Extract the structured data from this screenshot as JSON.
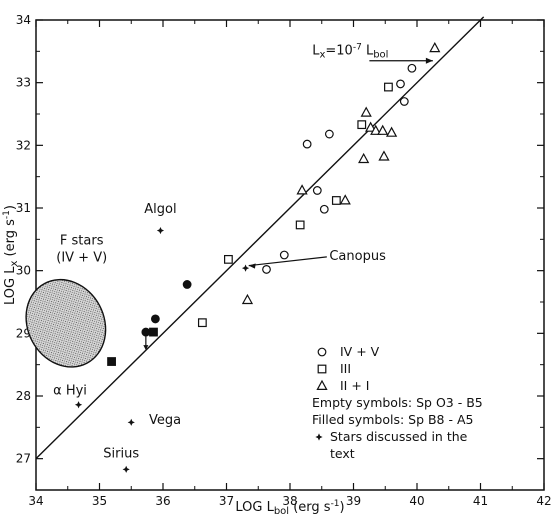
{
  "chart_data": {
    "type": "scatter",
    "xlabel": "LOG L_bol (erg s⁻¹)",
    "ylabel": "LOG L_x (erg s⁻¹)",
    "xlim": [
      34,
      42
    ],
    "ylim": [
      26.5,
      34
    ],
    "x_ticks": [
      34,
      35,
      36,
      37,
      38,
      39,
      40,
      41,
      42
    ],
    "y_ticks": [
      27,
      28,
      29,
      30,
      31,
      32,
      33,
      34
    ],
    "grid": false,
    "legend_position": "lower-right",
    "relation": {
      "label": "Lx=10⁻⁷ Lbol",
      "slope": 1,
      "intercept": -7
    },
    "series": [
      {
        "name": "IV + V",
        "marker": "circle",
        "points": [
          [
            38.27,
            32.02
          ],
          [
            38.62,
            32.18
          ],
          [
            39.74,
            32.98
          ],
          [
            39.92,
            33.23
          ],
          [
            39.8,
            32.7
          ],
          [
            38.43,
            31.28
          ],
          [
            38.54,
            30.98
          ],
          [
            37.91,
            30.25
          ],
          [
            37.63,
            30.02
          ]
        ]
      },
      {
        "name": "III",
        "marker": "square",
        "points": [
          [
            39.55,
            32.93
          ],
          [
            39.13,
            32.33
          ],
          [
            38.73,
            31.12
          ],
          [
            38.16,
            30.73
          ],
          [
            37.03,
            30.18
          ],
          [
            36.62,
            29.17
          ]
        ]
      },
      {
        "name": "II + I",
        "marker": "triangle",
        "points": [
          [
            40.28,
            33.55
          ],
          [
            39.2,
            32.52
          ],
          [
            39.27,
            32.28
          ],
          [
            39.35,
            32.23
          ],
          [
            39.46,
            32.23
          ],
          [
            39.6,
            32.2
          ],
          [
            39.16,
            31.78
          ],
          [
            39.48,
            31.82
          ],
          [
            38.19,
            31.28
          ],
          [
            38.87,
            31.12
          ],
          [
            37.33,
            29.53
          ]
        ]
      },
      {
        "name": "Filled symbols: Sp B8 - A5",
        "points_circle": [
          [
            35.73,
            29.02
          ],
          [
            35.88,
            29.23
          ],
          [
            36.38,
            29.78
          ]
        ],
        "points_square": [
          [
            35.19,
            28.55
          ],
          [
            35.85,
            29.02
          ]
        ]
      },
      {
        "name": "Stars discussed in the text",
        "marker": "star",
        "points": [
          {
            "label": "Algol",
            "x": 35.96,
            "y": 30.64
          },
          {
            "label": "Canopus",
            "x": 37.3,
            "y": 30.04
          },
          {
            "label": "α Hyi",
            "x": 34.67,
            "y": 27.86
          },
          {
            "label": "Vega",
            "x": 35.5,
            "y": 27.58
          },
          {
            "label": "Sirius",
            "x": 35.42,
            "y": 26.83
          }
        ]
      }
    ],
    "region": {
      "label_line1": "F stars",
      "label_line2": "(IV + V)",
      "cx": 34.47,
      "cy": 29.16,
      "rx": 0.6,
      "ry": 0.72
    },
    "legend": [
      {
        "marker": "circle",
        "text": "IV + V"
      },
      {
        "marker": "square",
        "text": "III"
      },
      {
        "marker": "triangle",
        "text": "II + I"
      },
      {
        "marker": "",
        "text": "Empty symbols: Sp O3 - B5"
      },
      {
        "marker": "",
        "text": "Filled symbols: Sp B8 - A5"
      },
      {
        "marker": "star",
        "text": "Stars discussed in the"
      },
      {
        "marker": "",
        "text": "text"
      }
    ]
  }
}
